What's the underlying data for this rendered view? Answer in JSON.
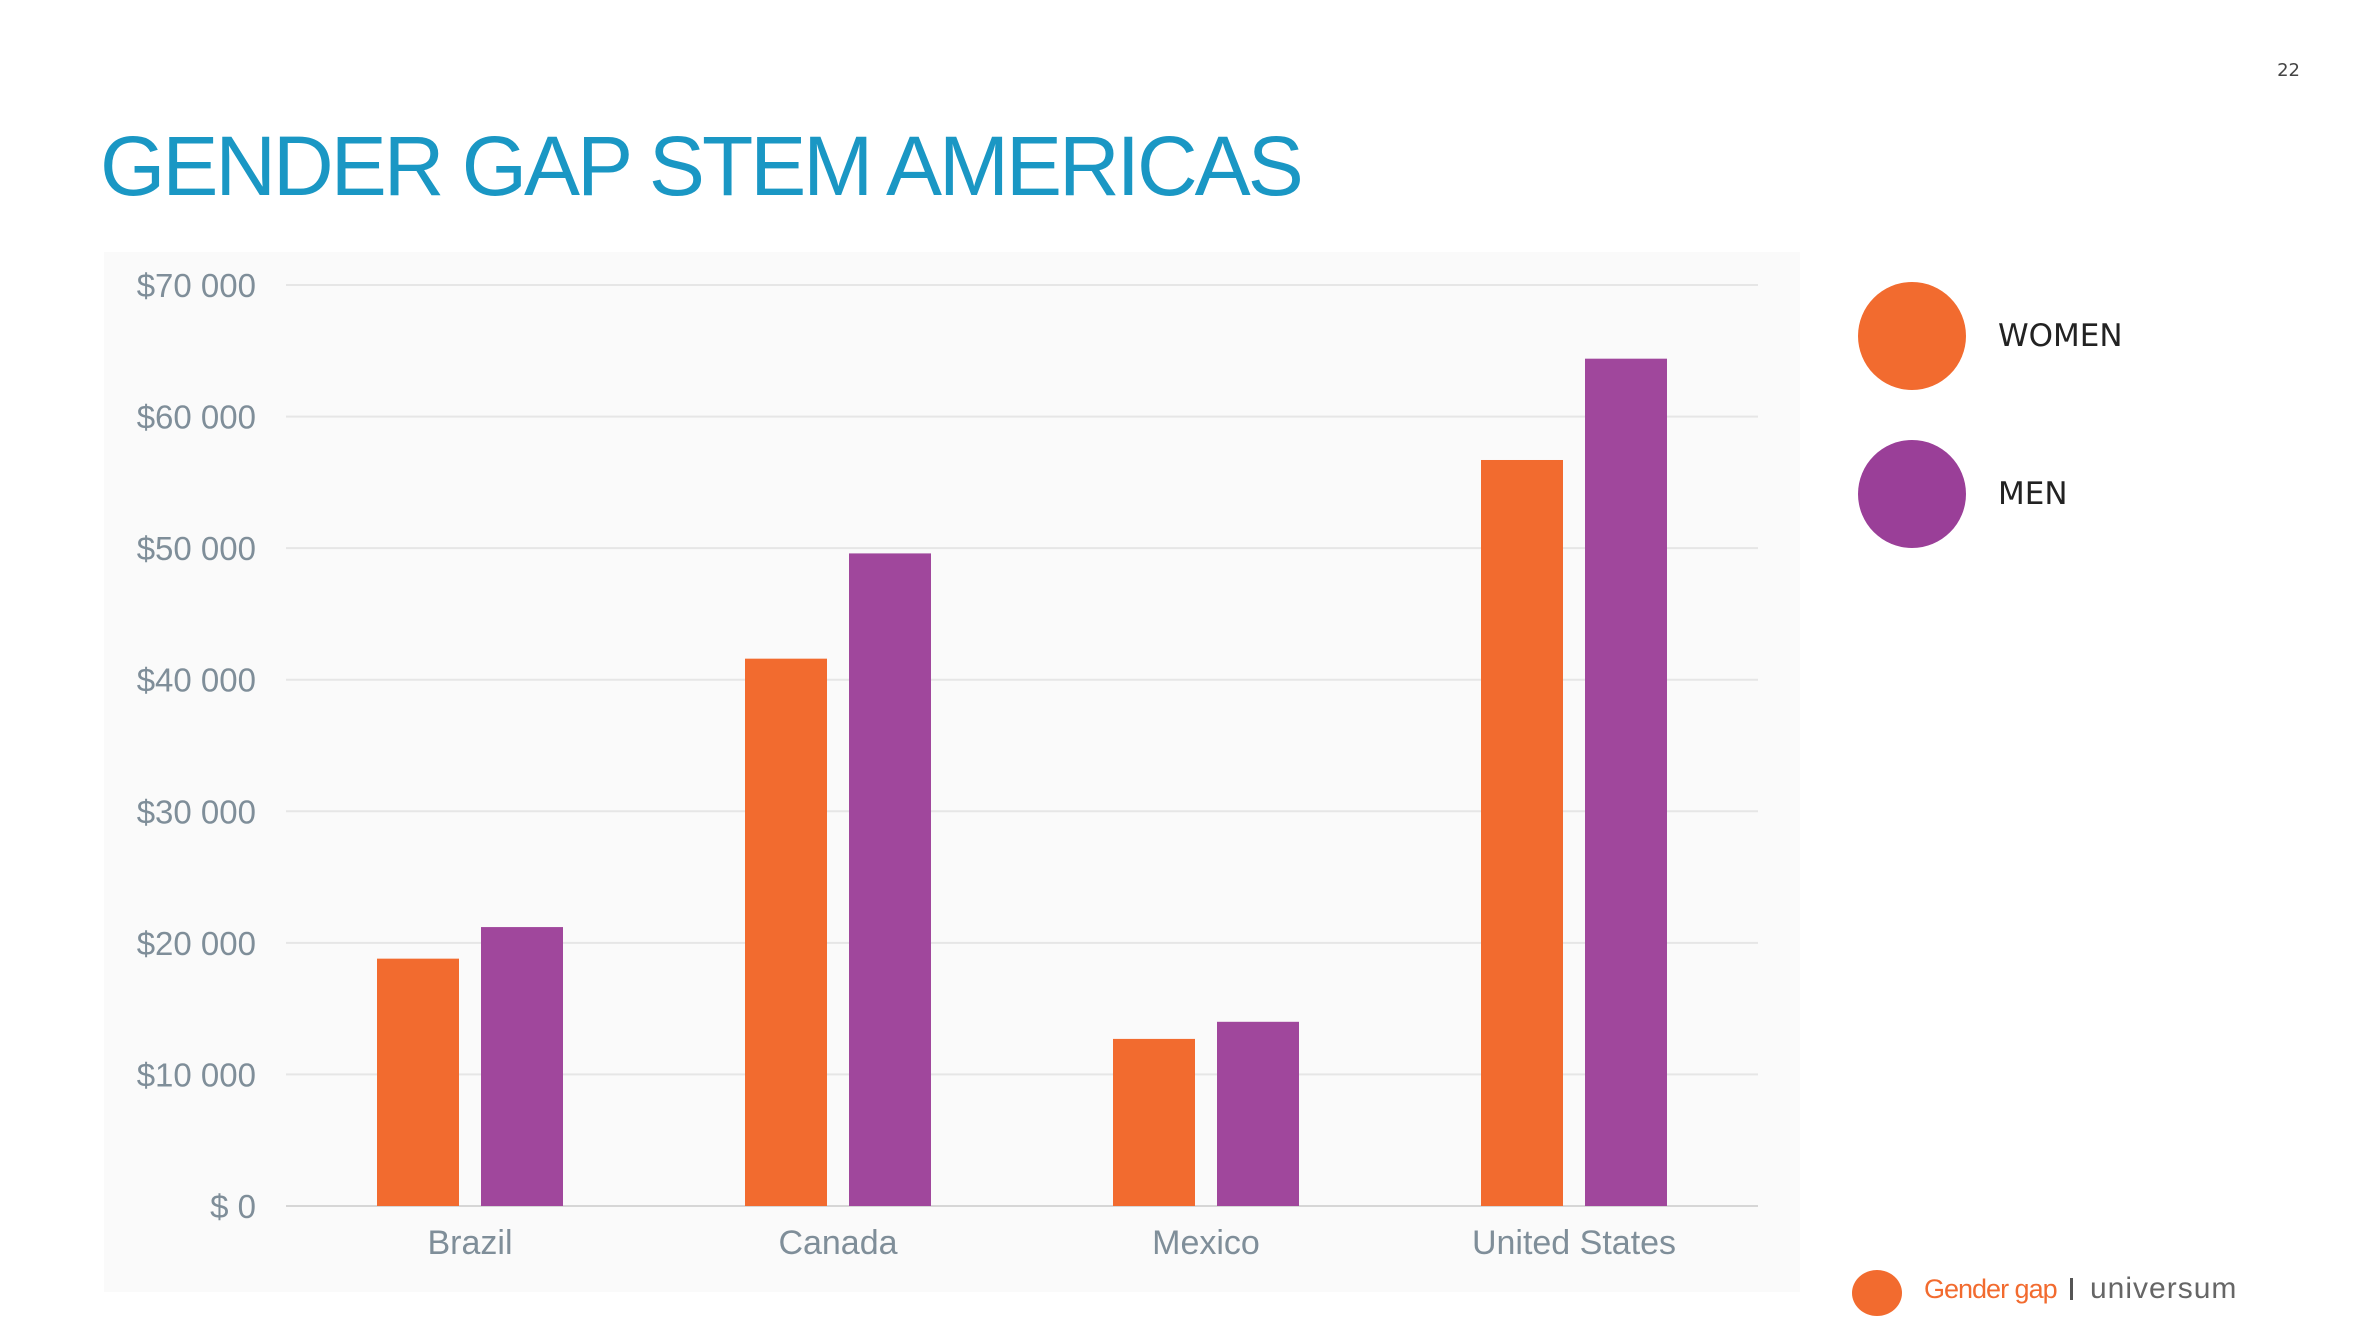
{
  "page_number": "22",
  "title": "GENDER GAP STEM AMERICAS",
  "legend": [
    {
      "label": "WOMEN",
      "color": "#f26b2f"
    },
    {
      "label": "MEN",
      "color": "#9a3f98"
    }
  ],
  "footer": {
    "section": "Gender gap",
    "brand": "universum",
    "dot_color": "#f26b2f"
  },
  "chart_data": {
    "type": "bar",
    "categories": [
      "Brazil",
      "Canada",
      "Mexico",
      "United States"
    ],
    "series": [
      {
        "name": "WOMEN",
        "color": "#f26b2f",
        "values": [
          18800,
          41600,
          12700,
          56700
        ]
      },
      {
        "name": "MEN",
        "color": "#a0479c",
        "values": [
          21200,
          49600,
          14000,
          64400
        ]
      }
    ],
    "ylim": [
      0,
      70000
    ],
    "yticks": [
      0,
      10000,
      20000,
      30000,
      40000,
      50000,
      60000,
      70000
    ],
    "ytick_labels": [
      "$ 0",
      "$10 000",
      "$20 000",
      "$30 000",
      "$40 000",
      "$50 000",
      "$60 000",
      "$70 000"
    ],
    "grid": true,
    "legend_position": "right"
  }
}
